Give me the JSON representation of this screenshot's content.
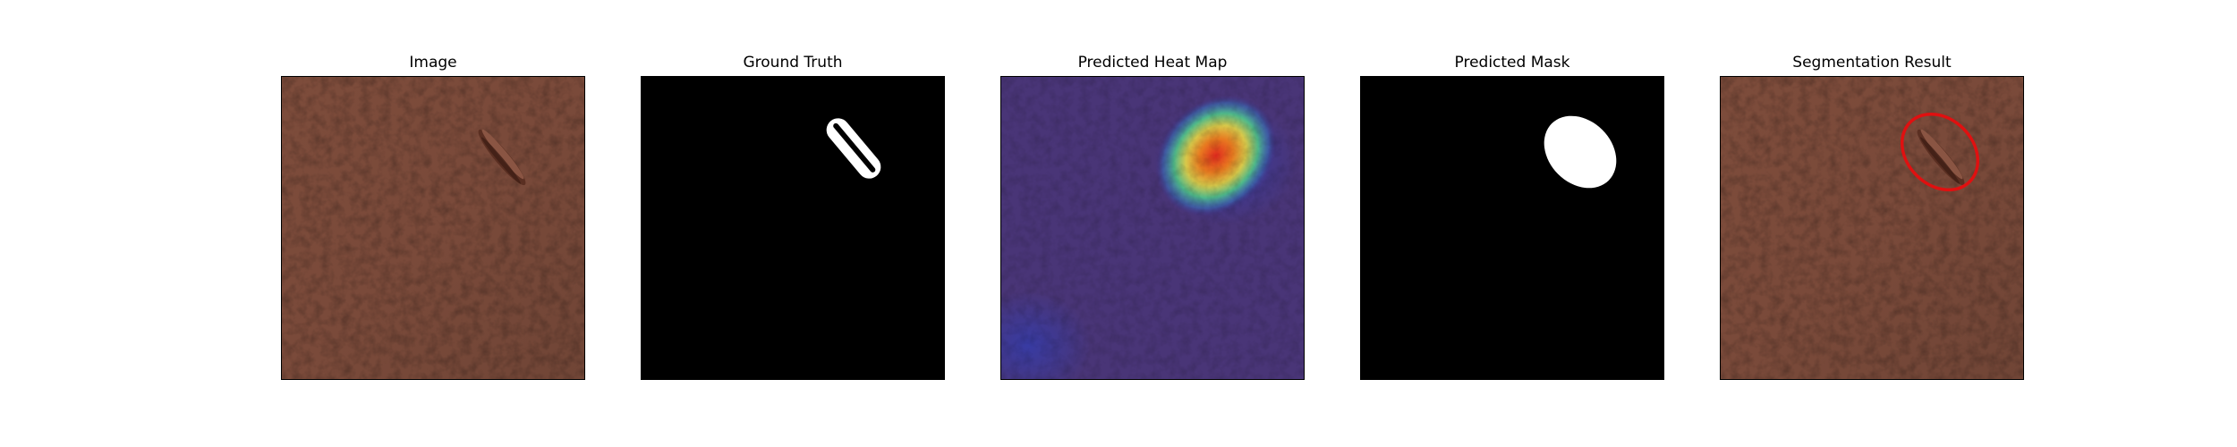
{
  "panels": [
    {
      "title": "Image"
    },
    {
      "title": "Ground Truth"
    },
    {
      "title": "Predicted Heat Map"
    },
    {
      "title": "Predicted Mask"
    },
    {
      "title": "Segmentation Result"
    }
  ],
  "colors": {
    "leather": "#7a4a3a",
    "mask_background": "#000000",
    "mask_foreground": "#ffffff",
    "heatmap_base": "#3b2f8c",
    "heatmap_hot": "#e8302a",
    "contour": "#e01010"
  }
}
